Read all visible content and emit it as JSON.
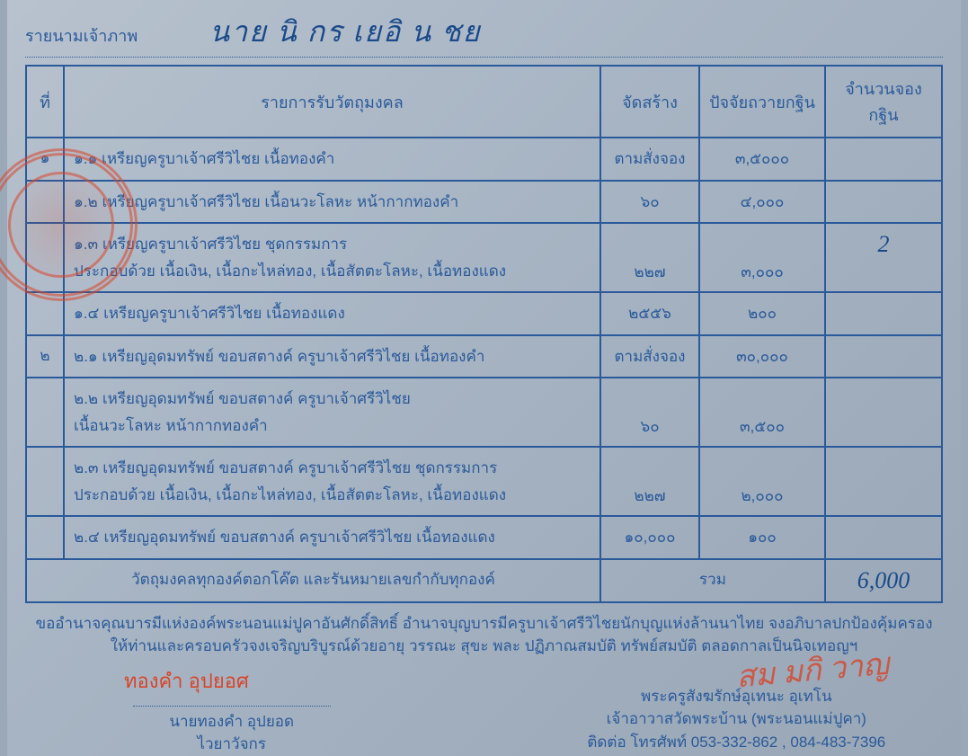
{
  "header": {
    "label": "รายนามเจ้าภาพ",
    "handwritten_name": "นาย นิ กร    เยอิ น ชย"
  },
  "table": {
    "headers": {
      "no": "ที่",
      "item": "รายการรับวัตถุมงคล",
      "qty": "จัดสร้าง",
      "price": "ปัจจัยถวายกฐิน",
      "total": "จำนวนจองกฐิน"
    },
    "rows": [
      {
        "no": "๑",
        "lines": [
          "๑.๑  เหรียญครูบาเจ้าศรีวิไชย เนื้อทองคำ"
        ],
        "qty": "ตามสั่งจอง",
        "price": "๓,๕๐๐๐",
        "total": ""
      },
      {
        "no": "",
        "lines": [
          "๑.๒  เหรียญครูบาเจ้าศรีวิไชย เนื้อนวะโลหะ หน้ากากทองคำ"
        ],
        "qty": "๖๐",
        "price": "๔,๐๐๐",
        "total": ""
      },
      {
        "no": "",
        "lines": [
          "๑.๓  เหรียญครูบาเจ้าศรีวิไชย  ชุดกรรมการ",
          "ประกอบด้วย เนื้อเงิน, เนื้อกะไหล่ทอง, เนื้อสัตตะโลหะ, เนื้อทองแดง"
        ],
        "qty": "๒๒๗",
        "price": "๓,๐๐๐",
        "total_hw": "2"
      },
      {
        "no": "",
        "lines": [
          "๑.๔  เหรียญครูบาเจ้าศรีวิไชย เนื้อทองแดง"
        ],
        "qty": "๒๕๕๖",
        "price": "๒๐๐",
        "total": ""
      },
      {
        "no": "๒",
        "lines": [
          "๒.๑  เหรียญอุดมทรัพย์ ขอบสตางค์ ครูบาเจ้าศรีวิไชย เนื้อทองคำ"
        ],
        "qty": "ตามสั่งจอง",
        "price": "๓๐,๐๐๐",
        "total": ""
      },
      {
        "no": "",
        "lines": [
          "๒.๒  เหรียญอุดมทรัพย์ ขอบสตางค์ ครูบาเจ้าศรีวิไชย",
          "เนื้อนวะโลหะ หน้ากากทองคำ"
        ],
        "qty": "๖๐",
        "price": "๓,๕๐๐",
        "total": ""
      },
      {
        "no": "",
        "lines": [
          "๒.๓  เหรียญอุดมทรัพย์ ขอบสตางค์ ครูบาเจ้าศรีวิไชย ชุดกรรมการ",
          "ประกอบด้วย เนื้อเงิน, เนื้อกะไหล่ทอง, เนื้อสัตตะโลหะ, เนื้อทองแดง"
        ],
        "qty": "๒๒๗",
        "price": "๒,๐๐๐",
        "total": ""
      },
      {
        "no": "",
        "lines": [
          "๒.๔  เหรียญอุดมทรัพย์ ขอบสตางค์ ครูบาเจ้าศรีวิไชย เนื้อทองแดง"
        ],
        "qty": "๑๐,๐๐๐",
        "price": "๑๐๐",
        "total": ""
      }
    ],
    "summary": {
      "text": "วัตถุมงคลทุกองค์ตอกโค๊ต และรันหมายเลขกำกับทุกองค์",
      "label": "รวม",
      "total_hw": "6,000"
    }
  },
  "footer": {
    "line1": "ขออำนาจคุณบารมีแห่งองค์พระนอนแม่ปูคาอันศักดิ์สิทธิ์ อำนาจบุญบารมีครูบาเจ้าศรีวิไชยนักบุญแห่งล้านนาไทย จงอภิบาลปกป้องคุ้มครอง",
    "line2": "ให้ท่านและครอบครัวจงเจริญบริบูรณ์ด้วยอายุ วรรณะ สุขะ พละ ปฏิภาณสมบัติ ทรัพย์สมบัติ ตลอดกาลเป็นนิจเทอญฯ",
    "stamp_name": "ทองคำ อุปยอศ",
    "left_sig": {
      "name": "นายทองคำ อุปยอด",
      "role": "ไวยาวัจกร"
    },
    "right_sig": {
      "name": "พระครูสังฆรักษ์อุเทนะ อุเทโน",
      "role": "เจ้าอาวาสวัดพระบ้าน (พระนอนแม่ปูคา)",
      "contact": "ติดต่อ โทรศัพท์ 053-332-862 , 084-483-7396"
    },
    "red_signature": "สม มกิ วาญ"
  },
  "colors": {
    "ink_blue": "#2a5a9a",
    "handwriting_blue": "#1a4a8a",
    "stamp_red": "#d8452a",
    "paper_bg": "#a8b5c4"
  }
}
